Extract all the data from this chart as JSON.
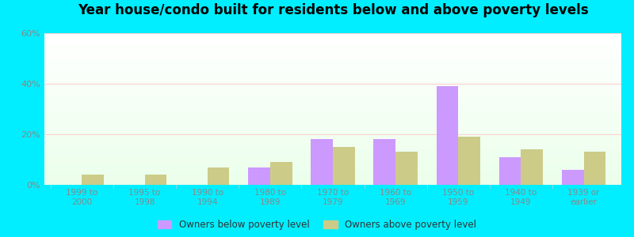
{
  "title": "Year house/condo built for residents below and above poverty levels",
  "categories": [
    "1999 to\n2000",
    "1995 to\n1998",
    "1990 to\n1994",
    "1980 to\n1989",
    "1970 to\n1979",
    "1960 to\n1969",
    "1950 to\n1959",
    "1940 to\n1949",
    "1939 or\nearlier"
  ],
  "below_poverty": [
    0,
    0,
    0,
    7,
    18,
    18,
    39,
    11,
    6
  ],
  "above_poverty": [
    4,
    4,
    7,
    9,
    15,
    13,
    19,
    14,
    13
  ],
  "below_color": "#cc99ff",
  "above_color": "#cccc88",
  "ylim": [
    0,
    60
  ],
  "yticks": [
    0,
    20,
    40,
    60
  ],
  "ytick_labels": [
    "0%",
    "20%",
    "40%",
    "60%"
  ],
  "outer_bg": "#00eeff",
  "bar_width": 0.35,
  "legend_below_label": "Owners below poverty level",
  "legend_above_label": "Owners above poverty level",
  "grid_color": "#ffcccc",
  "tick_color": "#888888",
  "title_fontsize": 12
}
